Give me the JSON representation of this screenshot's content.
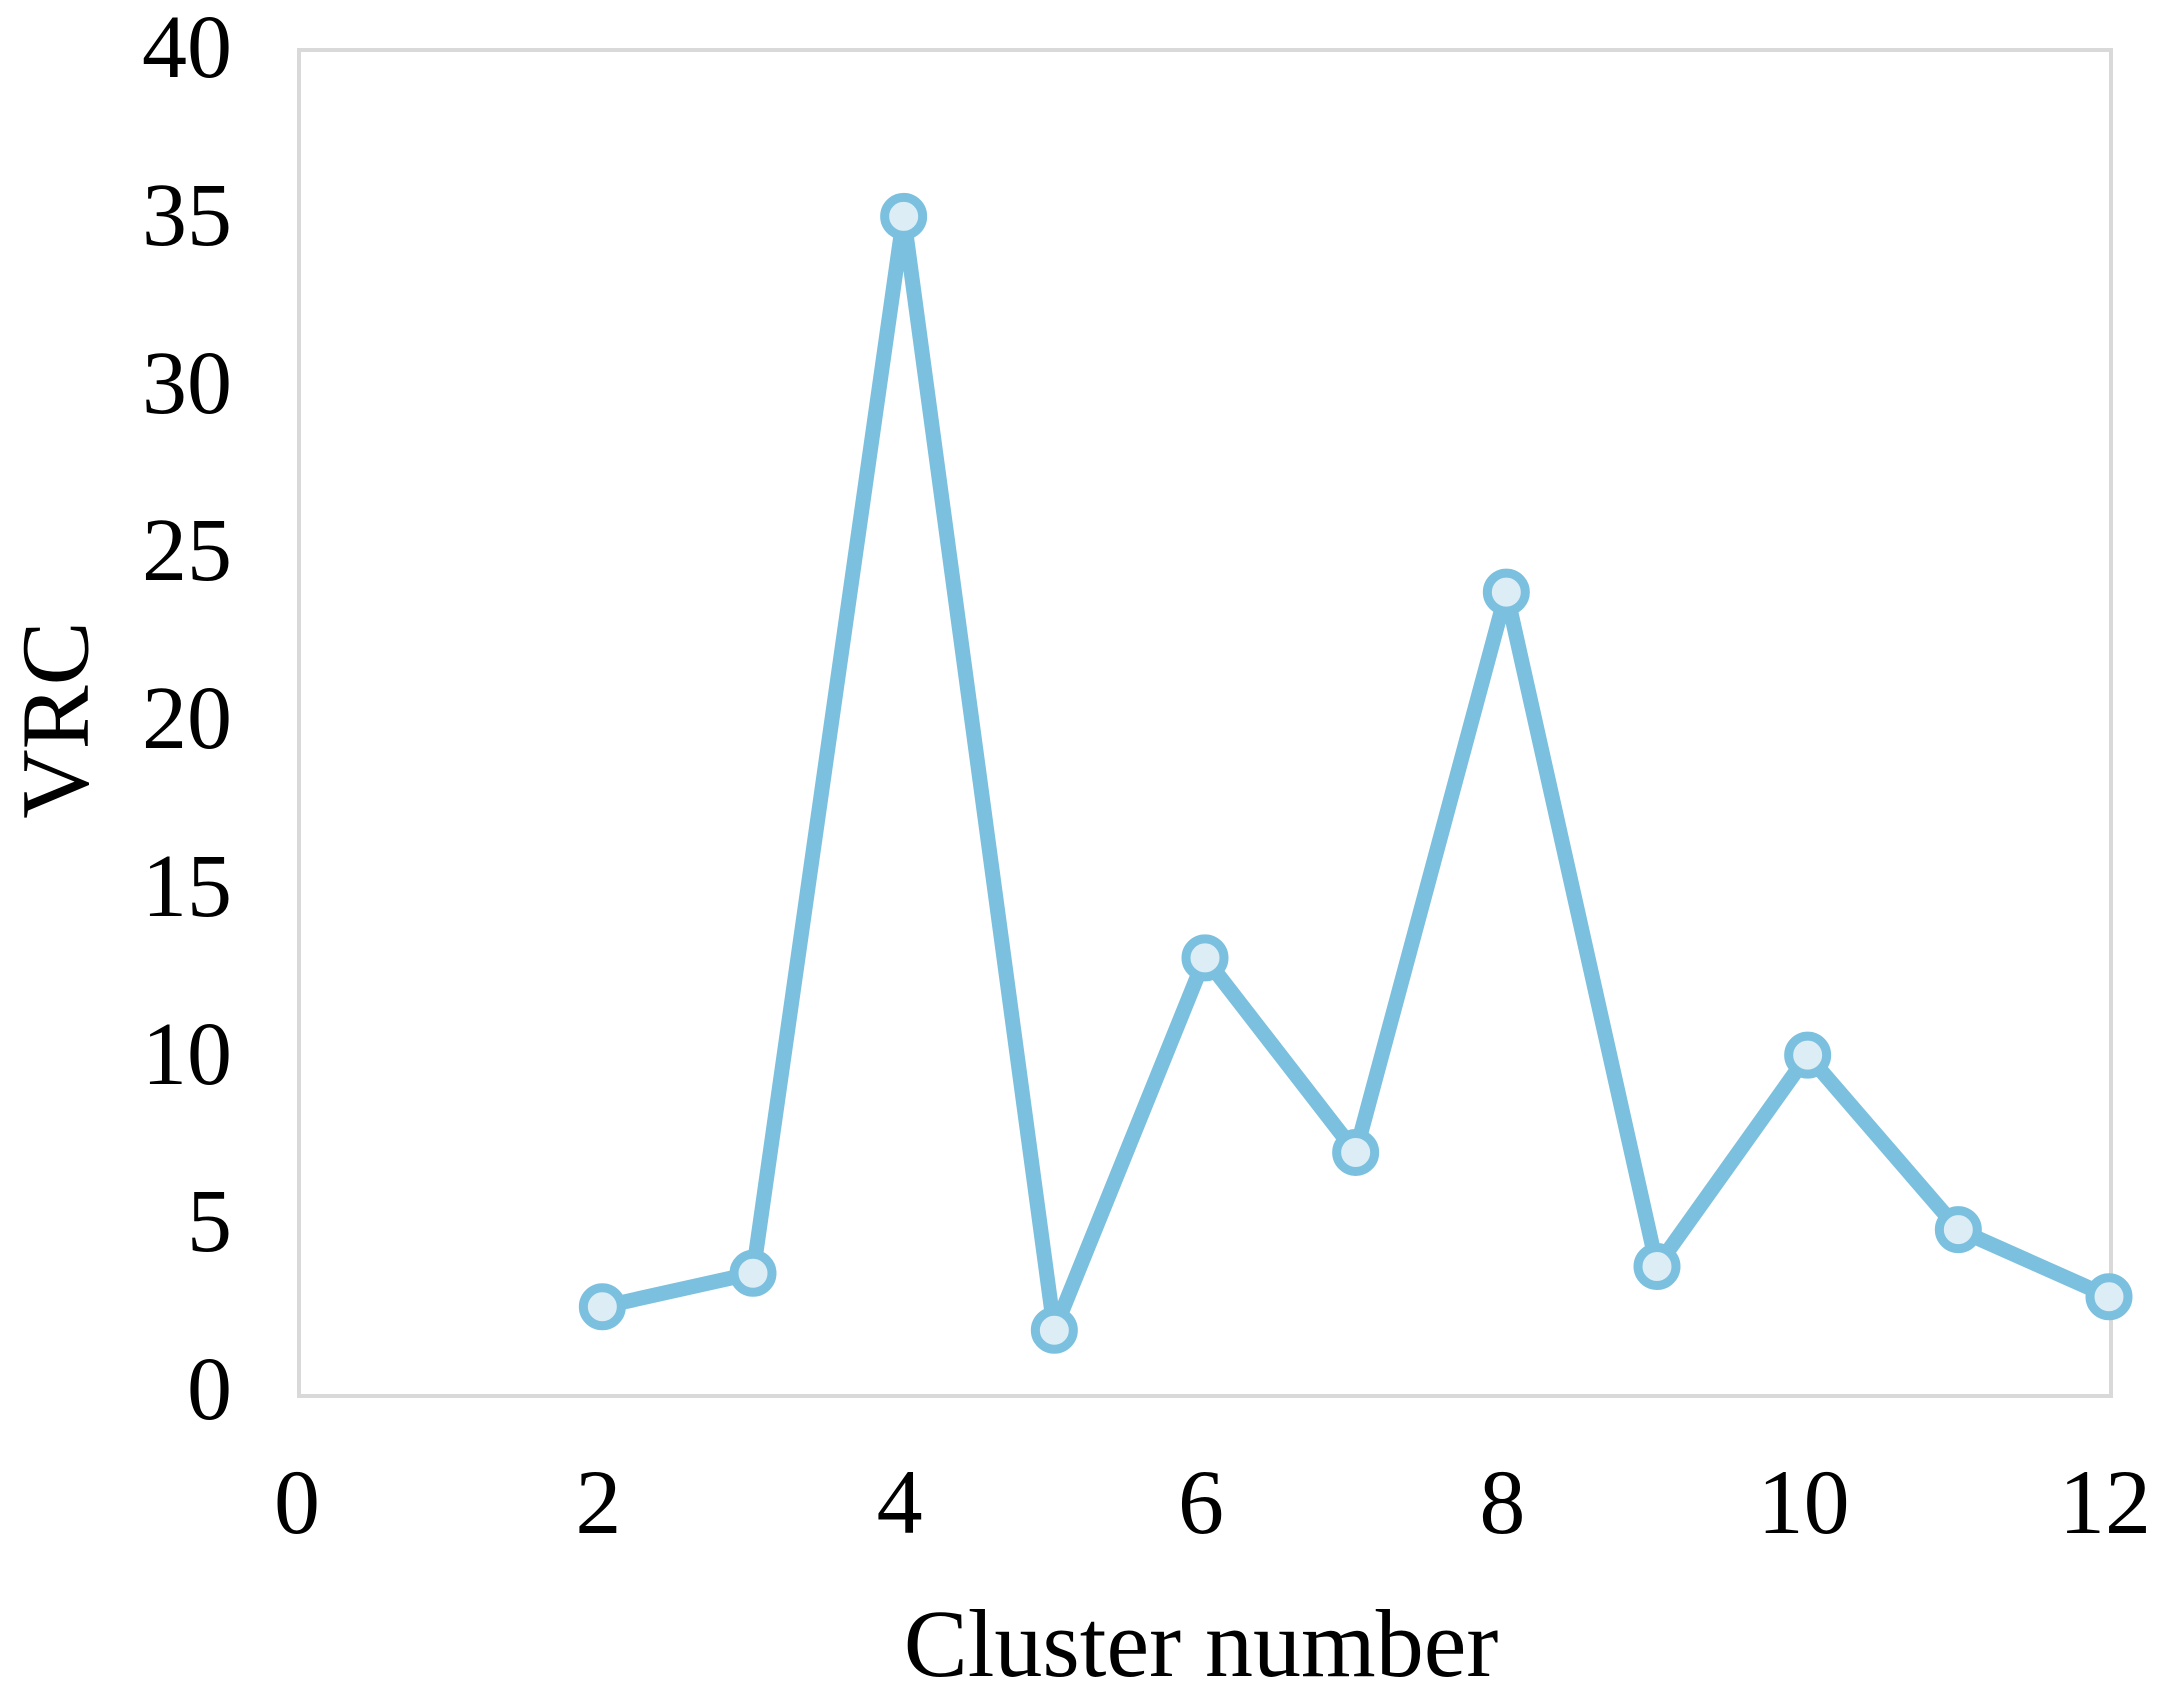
{
  "figure": {
    "background_color": "#ffffff",
    "text_color": "#000000"
  },
  "chart_data": {
    "type": "line",
    "title": "",
    "xlabel": "Cluster number",
    "ylabel": "VRC",
    "series": [
      {
        "name": "VRC",
        "x": [
          2,
          3,
          4,
          5,
          6,
          7,
          8,
          9,
          10,
          11,
          12
        ],
        "y": [
          2.6,
          3.6,
          35.1,
          1.9,
          13.0,
          7.2,
          23.9,
          3.8,
          10.1,
          4.9,
          2.9
        ]
      }
    ],
    "xlim": [
      0,
      12
    ],
    "ylim": [
      0,
      40
    ],
    "x_ticks": [
      0,
      2,
      4,
      6,
      8,
      10,
      12
    ],
    "y_ticks": [
      0,
      5,
      10,
      15,
      20,
      25,
      30,
      35,
      40
    ],
    "grid": false,
    "legend_position": "none",
    "line_color": "#7bc0de",
    "marker_fill": "#dcedf6",
    "marker_edge": "#7bc0de",
    "plot_border_color": "#d9d9d9"
  }
}
